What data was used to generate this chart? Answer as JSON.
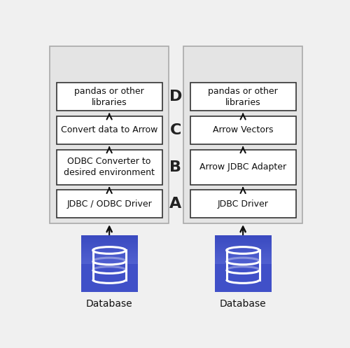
{
  "bg_color": "#f0f0f0",
  "panel_bg": "#e4e4e4",
  "box_bg": "#ffffff",
  "box_edge": "#333333",
  "panel_edge": "#aaaaaa",
  "arrow_color": "#111111",
  "label_color": "#111111",
  "mid_label_color": "#222222",
  "left_boxes": [
    "JDBC / ODBC Driver",
    "ODBC Converter to\ndesired environment",
    "Convert data to Arrow",
    "pandas or other\nlibraries"
  ],
  "right_boxes": [
    "JDBC Driver",
    "Arrow JDBC Adapter",
    "Arrow Vectors",
    "pandas or other\nlibraries"
  ],
  "row_labels": [
    "A",
    "B",
    "C",
    "D"
  ],
  "db_label": "Database",
  "db_color_top": "#5b6bd4",
  "db_color_bot": "#3b4bc4",
  "fig_width": 5.0,
  "fig_height": 4.97
}
